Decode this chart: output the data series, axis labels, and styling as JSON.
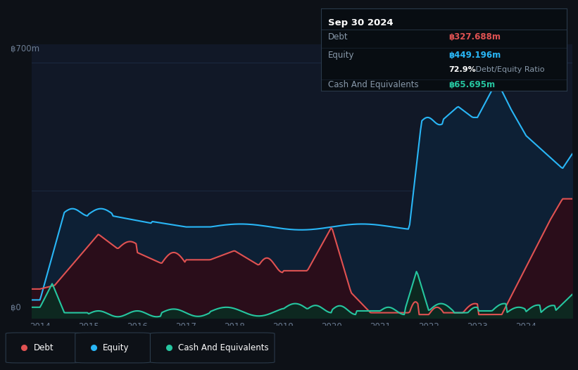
{
  "bg_color": "#0d1117",
  "plot_bg_color": "#111827",
  "grid_color": "#1e2d45",
  "title_box": {
    "date": "Sep 30 2024",
    "debt_label": "Debt",
    "debt_value": "฿327.688m",
    "equity_label": "Equity",
    "equity_value": "฿449.196m",
    "ratio_bold": "72.9%",
    "ratio_text": " Debt/Equity Ratio",
    "cash_label": "Cash And Equivalents",
    "cash_value": "฿65.695m"
  },
  "y_label_700": "฿700m",
  "y_label_0": "฿0",
  "debt_color": "#e05252",
  "equity_color": "#29b6f6",
  "cash_color": "#26c6a0",
  "equity_fill": "#0d2035",
  "debt_fill": "#2a0d1a",
  "cash_fill": "#0d2820",
  "legend_border": "#2a3a4a",
  "tooltip_bg": "#080d12",
  "tooltip_border": "#2a3a4a"
}
